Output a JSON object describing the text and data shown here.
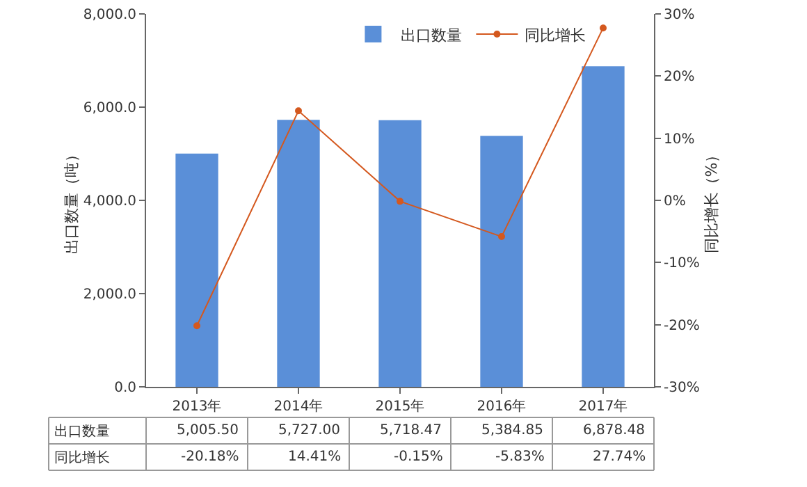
{
  "chart_data": {
    "type": "bar",
    "categories": [
      "2013年",
      "2014年",
      "2015年",
      "2016年",
      "2017年"
    ],
    "series": [
      {
        "name": "出口数量",
        "color": "#5a8fd8",
        "values": [
          5005.5,
          5727.0,
          5718.47,
          5384.85,
          6878.48
        ],
        "value_labels": [
          "5,005.50",
          "5,727.00",
          "5,718.47",
          "5,384.85",
          "6,878.48"
        ]
      },
      {
        "name": "同比增长",
        "type": "line",
        "axis": "y2",
        "color": "#d4581e",
        "marker": "circle",
        "values": [
          -20.18,
          14.41,
          -0.15,
          -5.83,
          27.74
        ],
        "value_labels": [
          "-20.18%",
          "14.41%",
          "-0.15%",
          "-5.83%",
          "27.74%"
        ]
      }
    ],
    "ylabel": "出口数量（吨）",
    "y2label": "同比增长（%）",
    "ylim": [
      0,
      8000
    ],
    "yticks": [
      {
        "value": 0,
        "label": "0.0"
      },
      {
        "value": 2000,
        "label": "2,000.0"
      },
      {
        "value": 4000,
        "label": "4,000.0"
      },
      {
        "value": 6000,
        "label": "6,000.0"
      },
      {
        "value": 8000,
        "label": "8,000.0"
      }
    ],
    "y2lim": [
      -30,
      30
    ],
    "y2ticks": [
      {
        "value": -30,
        "label": "-30%"
      },
      {
        "value": -20,
        "label": "-20%"
      },
      {
        "value": -10,
        "label": "-10%"
      },
      {
        "value": 0,
        "label": "0%"
      },
      {
        "value": 10,
        "label": "10%"
      },
      {
        "value": 20,
        "label": "20%"
      },
      {
        "value": 30,
        "label": "30%"
      }
    ],
    "legend": "top right",
    "grid": false
  }
}
